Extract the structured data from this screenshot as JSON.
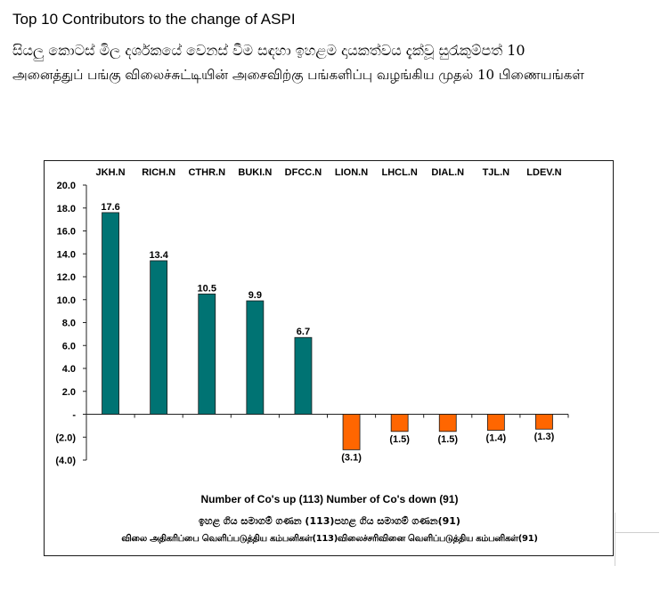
{
  "header": {
    "title_en": "Top 10 Contributors to the change of ASPI",
    "title_si": "සියලු කොටස් මිල දර්ශකයේ වෙනස් වීම සඳහා ඉහළම දායකත්වය දැක්වූ සුරැකුම්පත් 10",
    "title_ta": "அனைத்துப் பங்கு விலைச்சுட்டியின் அசைவிற்கு பங்களிப்பு வழங்கிய முதல் 10 பிணையங்கள்"
  },
  "footer": {
    "counts_en": "Number of Co's up (113) Number of Co's down  (91)",
    "counts_si": "ඉහළ ගිය සමාගම් ගණන (113)පහළ ගිය සමාගම් ගණන(91)",
    "counts_ta": "விலை அதிகரிப்பை வெளிப்படுத்திய கம்பனிகள்(113)விலைச்சரிவினை வெளிப்படுத்திய கம்பனிகள்(91)"
  },
  "colors": {
    "positive": "#007373",
    "negative": "#ff6600",
    "axis": "#222222"
  },
  "chart_data": {
    "type": "bar",
    "categories": [
      "JKH.N",
      "RICH.N",
      "CTHR.N",
      "BUKI.N",
      "DFCC.N",
      "LION.N",
      "LHCL.N",
      "DIAL.N",
      "TJL.N",
      "LDEV.N"
    ],
    "values": [
      17.6,
      13.4,
      10.5,
      9.9,
      6.7,
      -3.1,
      -1.5,
      -1.5,
      -1.4,
      -1.3
    ],
    "value_labels": [
      "17.6",
      "13.4",
      "10.5",
      "9.9",
      "6.7",
      "(3.1)",
      "(1.5)",
      "(1.5)",
      "(1.4)",
      "(1.3)"
    ],
    "ylim": [
      -4,
      20
    ],
    "y_ticks": [
      20,
      18,
      16,
      14,
      12,
      10,
      8,
      6,
      4,
      2,
      0,
      -2,
      -4
    ],
    "y_tick_labels": [
      "20.0",
      "18.0",
      "16.0",
      "14.0",
      "12.0",
      "10.0",
      "8.0",
      "6.0",
      "4.0",
      "2.0",
      "-",
      "(2.0)",
      "(4.0)"
    ],
    "category_axis_position": "top",
    "grid": false,
    "legend": "none"
  }
}
